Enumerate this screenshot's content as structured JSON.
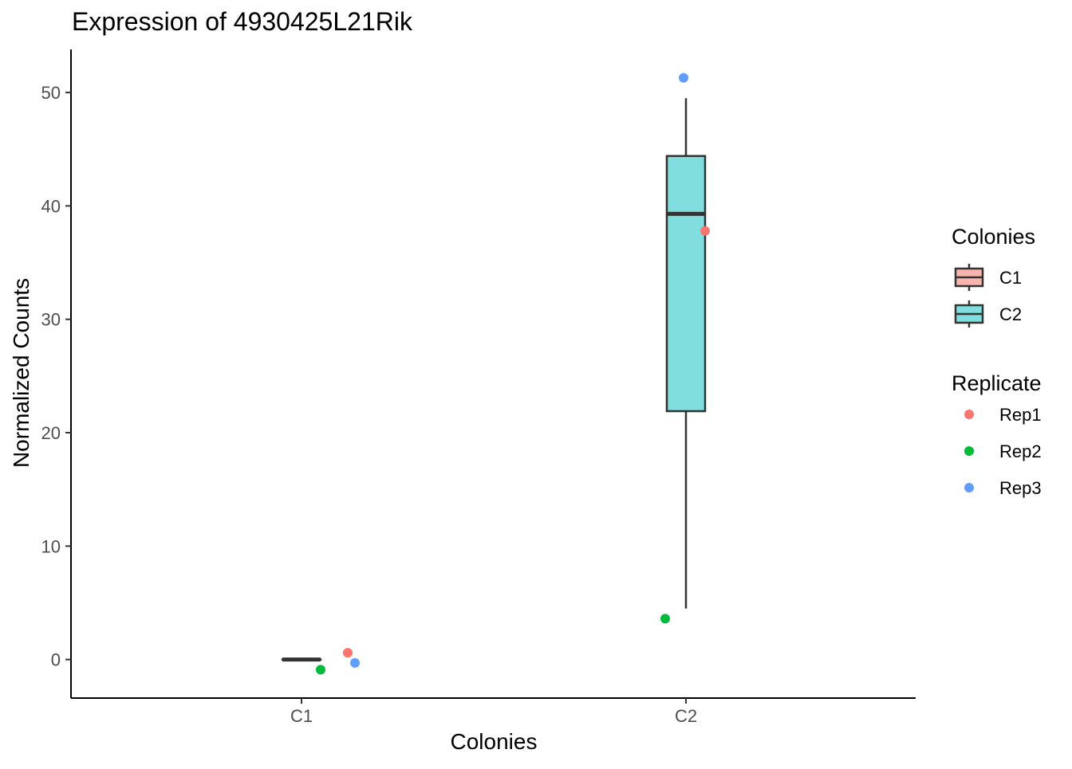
{
  "chart_data": {
    "type": "boxplot",
    "title": "Expression of 4930425L21Rik",
    "xlabel": "Colonies",
    "ylabel": "Normalized Counts",
    "categories": [
      "C1",
      "C2"
    ],
    "ylim": [
      -3.4,
      53.8
    ],
    "yticks": [
      0,
      10,
      20,
      30,
      40,
      50
    ],
    "grid": false,
    "boxes": [
      {
        "category": "C1",
        "fill": "#F8B4AE",
        "min": 0,
        "q1": 0,
        "median": 0,
        "q3": 0,
        "max": 0
      },
      {
        "category": "C2",
        "fill": "#80DEDF",
        "min": 4.5,
        "q1": 21.9,
        "median": 39.3,
        "q3": 44.4,
        "max": 49.5
      }
    ],
    "points": [
      {
        "category": "C1",
        "replicate": "Rep1",
        "y": 0.6
      },
      {
        "category": "C1",
        "replicate": "Rep2",
        "y": -0.9
      },
      {
        "category": "C1",
        "replicate": "Rep3",
        "y": -0.3
      },
      {
        "category": "C2",
        "replicate": "Rep1",
        "y": 37.8
      },
      {
        "category": "C2",
        "replicate": "Rep2",
        "y": 3.6
      },
      {
        "category": "C2",
        "replicate": "Rep3",
        "y": 51.3
      }
    ],
    "legend_position": "right",
    "legends": [
      {
        "title": "Colonies",
        "kind": "box",
        "entries": [
          {
            "label": "C1",
            "color": "#F8B4AE"
          },
          {
            "label": "C2",
            "color": "#80DEDF"
          }
        ]
      },
      {
        "title": "Replicate",
        "kind": "point",
        "entries": [
          {
            "label": "Rep1",
            "color": "#F8766D"
          },
          {
            "label": "Rep2",
            "color": "#00BA38"
          },
          {
            "label": "Rep3",
            "color": "#619CFF"
          }
        ]
      }
    ],
    "colors": {
      "box_line": "#333333",
      "axis": "#000000",
      "tick_label": "#4D4D4D"
    }
  }
}
